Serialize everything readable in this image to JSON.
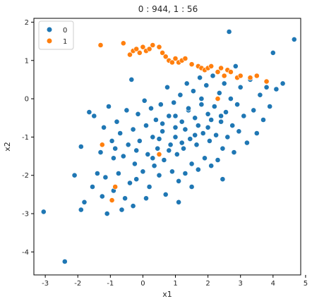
{
  "chart_data": {
    "type": "scatter",
    "title": "0 : 944,    1 : 56",
    "xlabel": "x1",
    "ylabel": "x2",
    "xlim": [
      -3.35,
      4.85
    ],
    "ylim": [
      -4.6,
      2.1
    ],
    "xticks": [
      -3,
      -2,
      -1,
      0,
      1,
      2,
      3,
      4,
      5
    ],
    "yticks": [
      -4,
      -3,
      -2,
      -1,
      0,
      1,
      2
    ],
    "grid": false,
    "legend_position": "top-left",
    "colors": {
      "0": "#1f77b4",
      "1": "#ff7f0e"
    },
    "series": [
      {
        "name": "0",
        "points": [
          [
            -3.05,
            -2.95
          ],
          [
            -2.4,
            -4.25
          ],
          [
            -2.1,
            -2.0
          ],
          [
            -1.9,
            -1.25
          ],
          [
            -1.8,
            -2.7
          ],
          [
            -1.65,
            -0.35
          ],
          [
            -1.5,
            -0.45
          ],
          [
            -1.4,
            -1.95
          ],
          [
            -1.3,
            -1.4
          ],
          [
            -1.2,
            -0.75
          ],
          [
            -1.15,
            -2.05
          ],
          [
            -1.1,
            -3.0
          ],
          [
            -1.05,
            -0.2
          ],
          [
            -0.95,
            -1.1
          ],
          [
            -0.9,
            -2.4
          ],
          [
            -0.85,
            -1.3
          ],
          [
            -0.8,
            -0.6
          ],
          [
            -0.75,
            -1.95
          ],
          [
            -0.7,
            -0.9
          ],
          [
            -0.6,
            -1.5
          ],
          [
            -0.55,
            -2.6
          ],
          [
            -0.5,
            -0.3
          ],
          [
            -0.45,
            -1.2
          ],
          [
            -0.4,
            -2.2
          ],
          [
            -0.35,
            0.5
          ],
          [
            -0.3,
            -0.8
          ],
          [
            -0.25,
            -1.7
          ],
          [
            -0.2,
            -2.1
          ],
          [
            -0.15,
            -0.4
          ],
          [
            -0.1,
            -1.1
          ],
          [
            0.0,
            -1.9
          ],
          [
            0.05,
            -0.05
          ],
          [
            0.1,
            -0.7
          ],
          [
            0.15,
            -1.45
          ],
          [
            0.2,
            -2.3
          ],
          [
            0.25,
            -0.25
          ],
          [
            0.3,
            -1.0
          ],
          [
            0.35,
            -1.75
          ],
          [
            0.4,
            -0.55
          ],
          [
            0.45,
            -1.3
          ],
          [
            0.5,
            -2.0
          ],
          [
            0.55,
            -0.15
          ],
          [
            0.6,
            -0.85
          ],
          [
            0.65,
            -1.6
          ],
          [
            0.7,
            -2.5
          ],
          [
            0.75,
            0.3
          ],
          [
            0.8,
            -0.45
          ],
          [
            0.85,
            -1.2
          ],
          [
            0.9,
            -1.9
          ],
          [
            0.95,
            -0.1
          ],
          [
            1.0,
            -0.75
          ],
          [
            1.05,
            -1.45
          ],
          [
            1.1,
            -2.15
          ],
          [
            1.15,
            0.1
          ],
          [
            1.2,
            -0.6
          ],
          [
            1.25,
            -1.3
          ],
          [
            1.3,
            -1.95
          ],
          [
            1.35,
            0.4
          ],
          [
            1.4,
            -0.3
          ],
          [
            1.45,
            -1.05
          ],
          [
            1.5,
            -1.7
          ],
          [
            1.55,
            0.2
          ],
          [
            1.6,
            -0.5
          ],
          [
            1.65,
            -1.2
          ],
          [
            1.7,
            -1.85
          ],
          [
            1.75,
            0.55
          ],
          [
            1.8,
            -0.15
          ],
          [
            1.85,
            -0.9
          ],
          [
            1.9,
            -1.55
          ],
          [
            1.95,
            0.35
          ],
          [
            2.0,
            -0.4
          ],
          [
            2.05,
            -1.1
          ],
          [
            2.1,
            -1.75
          ],
          [
            2.15,
            0.6
          ],
          [
            2.2,
            -0.2
          ],
          [
            2.25,
            -0.95
          ],
          [
            2.3,
            -1.6
          ],
          [
            2.35,
            0.15
          ],
          [
            2.4,
            -0.6
          ],
          [
            2.45,
            -1.3
          ],
          [
            2.5,
            0.4
          ],
          [
            2.55,
            -0.35
          ],
          [
            2.6,
            -1.0
          ],
          [
            2.65,
            1.75
          ],
          [
            2.7,
            0.0
          ],
          [
            2.75,
            -0.7
          ],
          [
            2.8,
            -1.4
          ],
          [
            2.85,
            0.85
          ],
          [
            2.9,
            -0.15
          ],
          [
            2.95,
            -0.85
          ],
          [
            3.0,
            0.3
          ],
          [
            3.1,
            -0.45
          ],
          [
            3.2,
            -1.15
          ],
          [
            3.3,
            0.5
          ],
          [
            3.4,
            -0.3
          ],
          [
            3.5,
            -0.9
          ],
          [
            3.6,
            0.1
          ],
          [
            3.7,
            -0.55
          ],
          [
            3.8,
            0.3
          ],
          [
            3.9,
            -0.2
          ],
          [
            4.0,
            1.2
          ],
          [
            4.1,
            0.25
          ],
          [
            4.3,
            0.4
          ],
          [
            4.65,
            1.55
          ],
          [
            -1.9,
            -2.9
          ],
          [
            -1.55,
            -2.3
          ],
          [
            -1.25,
            -2.55
          ],
          [
            -0.65,
            -2.9
          ],
          [
            -0.3,
            -2.8
          ],
          [
            0.1,
            -2.6
          ],
          [
            1.1,
            -2.7
          ],
          [
            1.5,
            -2.3
          ],
          [
            2.45,
            -2.1
          ],
          [
            -0.9,
            -1.55
          ],
          [
            -0.2,
            -1.35
          ],
          [
            0.5,
            -1.05
          ],
          [
            1.0,
            -1.0
          ],
          [
            1.3,
            -0.8
          ],
          [
            1.7,
            -0.7
          ],
          [
            2.1,
            -0.55
          ],
          [
            0.3,
            -1.55
          ],
          [
            0.8,
            -1.35
          ],
          [
            1.2,
            -1.15
          ],
          [
            1.6,
            -0.95
          ],
          [
            2.0,
            -0.75
          ],
          [
            2.4,
            -0.45
          ],
          [
            0.6,
            -0.65
          ],
          [
            1.0,
            -0.45
          ],
          [
            1.4,
            -0.25
          ],
          [
            1.8,
            0.0
          ]
        ]
      },
      {
        "name": "1",
        "points": [
          [
            -1.3,
            1.4
          ],
          [
            -0.6,
            1.45
          ],
          [
            -0.4,
            1.15
          ],
          [
            -0.3,
            1.25
          ],
          [
            -0.2,
            1.3
          ],
          [
            -0.1,
            1.2
          ],
          [
            0.0,
            1.35
          ],
          [
            0.1,
            1.25
          ],
          [
            0.2,
            1.3
          ],
          [
            0.3,
            1.4
          ],
          [
            0.5,
            1.35
          ],
          [
            0.6,
            1.2
          ],
          [
            0.7,
            1.1
          ],
          [
            0.8,
            1.0
          ],
          [
            0.9,
            0.95
          ],
          [
            1.0,
            1.05
          ],
          [
            1.1,
            0.95
          ],
          [
            1.2,
            1.0
          ],
          [
            1.3,
            1.05
          ],
          [
            1.5,
            0.9
          ],
          [
            1.7,
            0.85
          ],
          [
            1.8,
            0.8
          ],
          [
            1.9,
            0.75
          ],
          [
            2.0,
            0.8
          ],
          [
            2.1,
            0.85
          ],
          [
            2.3,
            0.7
          ],
          [
            2.4,
            0.8
          ],
          [
            2.5,
            0.6
          ],
          [
            2.6,
            0.75
          ],
          [
            2.7,
            0.7
          ],
          [
            2.9,
            0.55
          ],
          [
            3.0,
            0.6
          ],
          [
            3.3,
            0.55
          ],
          [
            3.5,
            0.6
          ],
          [
            3.8,
            0.45
          ],
          [
            -1.25,
            -1.2
          ],
          [
            -0.95,
            -2.65
          ],
          [
            -0.85,
            -2.3
          ],
          [
            0.5,
            -1.45
          ],
          [
            2.3,
            0.0
          ]
        ]
      }
    ]
  }
}
